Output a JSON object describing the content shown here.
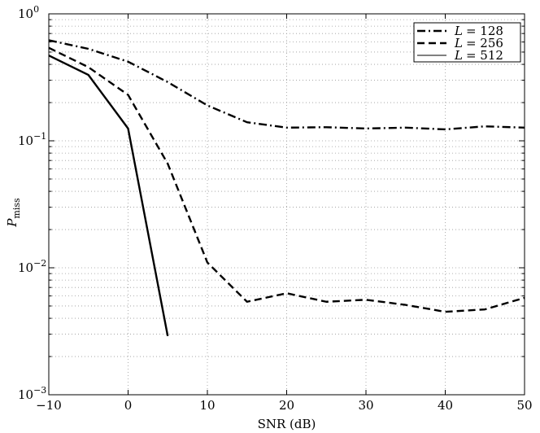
{
  "chart_data": {
    "type": "line",
    "x_axis": {
      "label_text": "SNR (dB)",
      "lim": [
        -10,
        50
      ],
      "ticks": [
        -10,
        0,
        10,
        20,
        30,
        40,
        50
      ],
      "tick_labels": [
        "−10",
        "0",
        "10",
        "20",
        "30",
        "40",
        "50"
      ]
    },
    "y_axis": {
      "label_main": "P",
      "label_sub": "miss",
      "scale": "log",
      "lim": [
        0.001,
        1
      ],
      "decades": [
        {
          "base": "10",
          "exp": "0"
        },
        {
          "base": "10",
          "exp": "−1"
        },
        {
          "base": "10",
          "exp": "−2"
        },
        {
          "base": "10",
          "exp": "−3"
        }
      ]
    },
    "grid": true,
    "legend": {
      "placement": "top-right",
      "items": [
        {
          "var": "L",
          "eq": "= 128"
        },
        {
          "var": "L",
          "eq": "= 256"
        },
        {
          "var": "L",
          "eq": "= 512"
        }
      ]
    },
    "series": [
      {
        "style": "dash-dot",
        "x": [
          -10,
          -5,
          0,
          5,
          10,
          15,
          20,
          25,
          30,
          35,
          40,
          45,
          50
        ],
        "y": [
          0.62,
          0.53,
          0.42,
          0.29,
          0.19,
          0.14,
          0.127,
          0.128,
          0.125,
          0.127,
          0.123,
          0.13,
          0.127
        ]
      },
      {
        "style": "dashed",
        "x": [
          -10,
          -5,
          0,
          5,
          10,
          15,
          20,
          25,
          30,
          35,
          40,
          45,
          50
        ],
        "y": [
          0.54,
          0.38,
          0.23,
          0.066,
          0.011,
          0.0054,
          0.0063,
          0.0054,
          0.0056,
          0.0051,
          0.0045,
          0.0047,
          0.0058
        ]
      },
      {
        "style": "solid",
        "x": [
          -10,
          -5,
          0,
          5
        ],
        "y": [
          0.47,
          0.33,
          0.125,
          0.0029
        ]
      }
    ]
  }
}
